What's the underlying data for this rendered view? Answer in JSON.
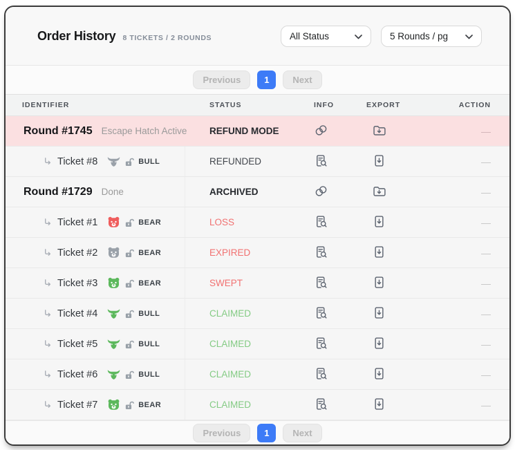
{
  "header": {
    "title": "Order History",
    "subtitle": "8 TICKETS / 2 ROUNDS",
    "status_filter": "All Status",
    "page_size": "5 Rounds / pg"
  },
  "pagination": {
    "previous_label": "Previous",
    "current_page": "1",
    "next_label": "Next"
  },
  "table": {
    "columns": [
      "IDENTIFIER",
      "STATUS",
      "INFO",
      "EXPORT",
      "ACTION"
    ],
    "action_placeholder": "—",
    "rows": [
      {
        "type": "round",
        "id": "Round #1745",
        "sub": "Escape Hatch Active",
        "status": "REFUND MODE",
        "status_kind": "dark",
        "highlight": true
      },
      {
        "type": "ticket",
        "id": "Ticket #8",
        "side": "BULL",
        "animal": "bull",
        "side_color": "gray",
        "status": "REFUNDED",
        "status_kind": "muted"
      },
      {
        "type": "round",
        "id": "Round #1729",
        "sub": "Done",
        "status": "ARCHIVED",
        "status_kind": "dark"
      },
      {
        "type": "ticket",
        "id": "Ticket #1",
        "side": "BEAR",
        "animal": "bear",
        "side_color": "red",
        "status": "LOSS",
        "status_kind": "red"
      },
      {
        "type": "ticket",
        "id": "Ticket #2",
        "side": "BEAR",
        "animal": "bear",
        "side_color": "gray",
        "status": "EXPIRED",
        "status_kind": "red"
      },
      {
        "type": "ticket",
        "id": "Ticket #3",
        "side": "BEAR",
        "animal": "bear",
        "side_color": "green",
        "status": "SWEPT",
        "status_kind": "red"
      },
      {
        "type": "ticket",
        "id": "Ticket #4",
        "side": "BULL",
        "animal": "bull",
        "side_color": "green",
        "status": "CLAIMED",
        "status_kind": "green"
      },
      {
        "type": "ticket",
        "id": "Ticket #5",
        "side": "BULL",
        "animal": "bull",
        "side_color": "green",
        "status": "CLAIMED",
        "status_kind": "green"
      },
      {
        "type": "ticket",
        "id": "Ticket #6",
        "side": "BULL",
        "animal": "bull",
        "side_color": "green",
        "status": "CLAIMED",
        "status_kind": "green"
      },
      {
        "type": "ticket",
        "id": "Ticket #7",
        "side": "BEAR",
        "animal": "bear",
        "side_color": "green",
        "status": "CLAIMED",
        "status_kind": "green"
      }
    ]
  },
  "colors": {
    "accent_blue": "#3d7bf7",
    "highlight_row_bg": "#fbe0e1",
    "icon_gray": "#5d6470",
    "status": {
      "dark": "#26292e",
      "muted": "#43474d",
      "red": "#f17171",
      "green": "#84cb84"
    },
    "sides": {
      "green": "#5cb85c",
      "red": "#ef5d5d",
      "gray": "#9aa1a9"
    }
  }
}
